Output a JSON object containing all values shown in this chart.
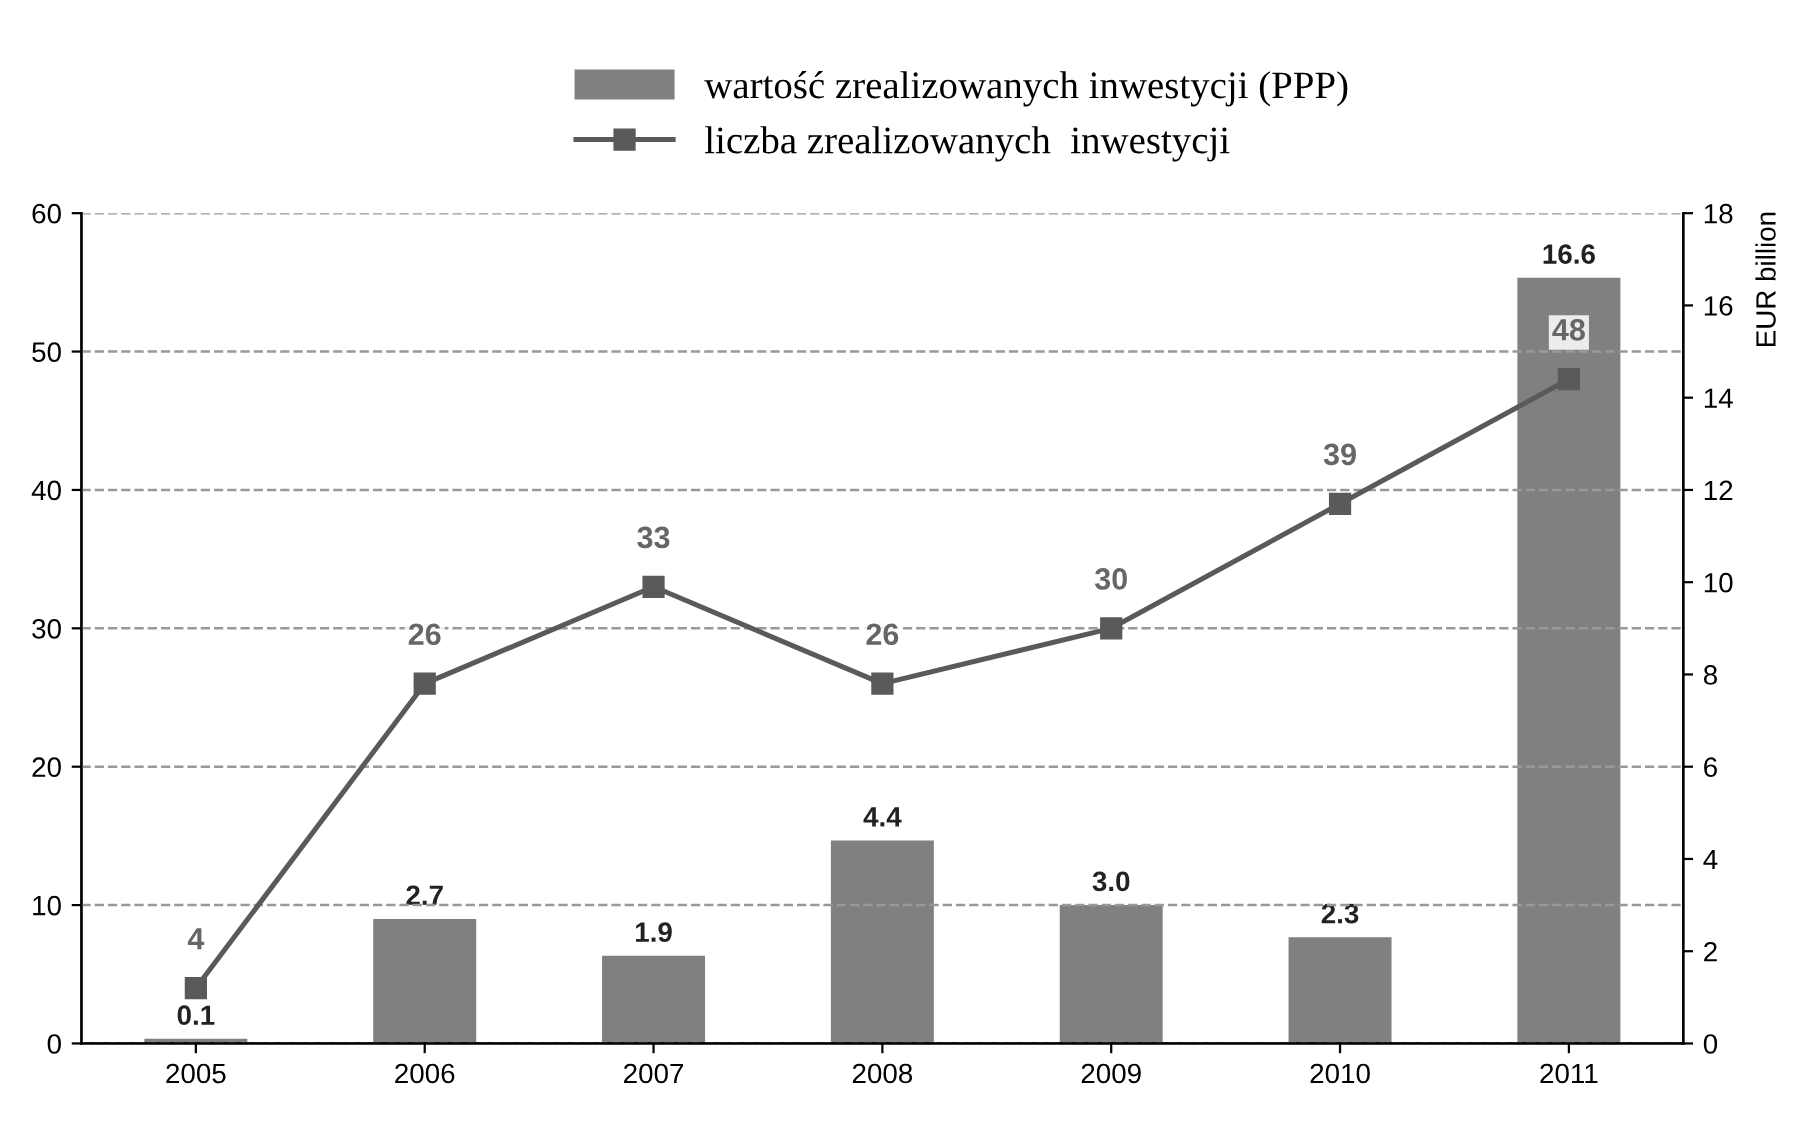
{
  "chart_data": {
    "type": "bar",
    "categories": [
      "2005",
      "2006",
      "2007",
      "2008",
      "2009",
      "2010",
      "2011"
    ],
    "series": [
      {
        "name": "wartość zrealizowanych inwestycji (PPP)",
        "axis": "y2",
        "color": "#808080",
        "values": [
          0.1,
          2.7,
          1.9,
          4.4,
          3.0,
          2.3,
          16.6
        ],
        "value_labels": [
          "0.1",
          "2.7",
          "1.9",
          "4.4",
          "3.0",
          "2.3",
          "16.6"
        ]
      },
      {
        "name": "liczba zrealizowanych  inwestycji",
        "type": "line",
        "color": "#5a5a5a",
        "values": [
          4,
          26,
          33,
          26,
          30,
          39,
          48
        ],
        "value_labels": [
          "4",
          "26",
          "33",
          "26",
          "30",
          "39",
          "48"
        ]
      }
    ],
    "ylim": [
      0,
      60
    ],
    "yticks": [
      0,
      10,
      20,
      30,
      40,
      50,
      60
    ],
    "y2lim": [
      0,
      18
    ],
    "y2ticks": [
      0,
      2,
      4,
      6,
      8,
      10,
      12,
      14,
      16,
      18
    ],
    "y2label": "EUR billion",
    "grid": "y",
    "legend": "top",
    "marker": "square",
    "line_style": "solid"
  }
}
